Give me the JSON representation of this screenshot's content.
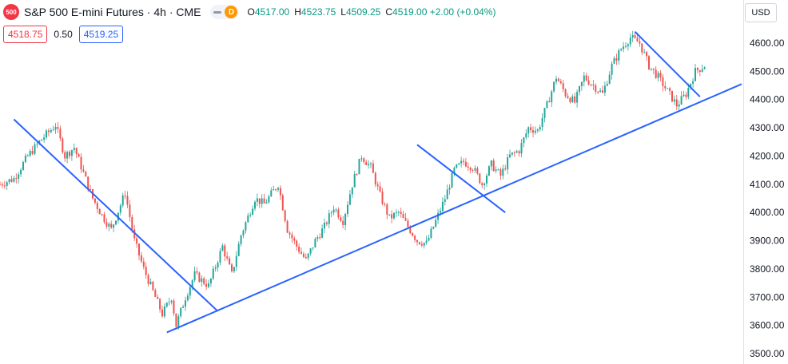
{
  "header": {
    "symbol_badge": "500",
    "title": "S&P 500 E-mini Futures · 4h · CME",
    "d_badge": "D",
    "ohlc": [
      {
        "key": "O",
        "value": "4517.00"
      },
      {
        "key": "H",
        "value": "4523.75"
      },
      {
        "key": "L",
        "value": "4509.25"
      },
      {
        "key": "C",
        "value": "4519.00 +2.00 (+0.04%)"
      }
    ],
    "bid": "4518.75",
    "spread": "0.50",
    "ask": "4519.25",
    "currency": "USD"
  },
  "colors": {
    "up": "#26a69a",
    "down": "#ef5350",
    "trendline": "#2962ff",
    "badge": "#f23645",
    "d_badge": "#ff9800",
    "bid": "#f23645",
    "ask": "#2962ff",
    "ohlc_value": "#089981"
  },
  "chart_data": {
    "type": "candlestick",
    "y_axis": {
      "range": [
        3480,
        4650
      ],
      "ticks": [
        "3500.00",
        "3600.00",
        "3700.00",
        "3800.00",
        "3900.00",
        "4000.00",
        "4100.00",
        "4200.00",
        "4300.00",
        "4400.00",
        "4500.00",
        "4600.00"
      ]
    },
    "price_path": [
      [
        0,
        4100
      ],
      [
        3,
        4120
      ],
      [
        6,
        4200
      ],
      [
        9,
        4260
      ],
      [
        12,
        4310
      ],
      [
        14,
        4200
      ],
      [
        16,
        4230
      ],
      [
        18,
        4140
      ],
      [
        20,
        4050
      ],
      [
        22,
        3990
      ],
      [
        24,
        3940
      ],
      [
        27,
        4070
      ],
      [
        29,
        3900
      ],
      [
        31,
        3800
      ],
      [
        33,
        3720
      ],
      [
        35,
        3640
      ],
      [
        37,
        3700
      ],
      [
        38,
        3600
      ],
      [
        40,
        3700
      ],
      [
        42,
        3780
      ],
      [
        45,
        3740
      ],
      [
        48,
        3880
      ],
      [
        50,
        3780
      ],
      [
        52,
        3920
      ],
      [
        55,
        4050
      ],
      [
        57,
        4030
      ],
      [
        60,
        4100
      ],
      [
        62,
        3940
      ],
      [
        64,
        3880
      ],
      [
        66,
        3830
      ],
      [
        68,
        3900
      ],
      [
        70,
        3950
      ],
      [
        72,
        4020
      ],
      [
        74,
        3970
      ],
      [
        76,
        4100
      ],
      [
        78,
        4200
      ],
      [
        80,
        4160
      ],
      [
        82,
        4060
      ],
      [
        84,
        3980
      ],
      [
        86,
        4000
      ],
      [
        88,
        3950
      ],
      [
        90,
        3900
      ],
      [
        92,
        3890
      ],
      [
        94,
        3970
      ],
      [
        96,
        4050
      ],
      [
        98,
        4150
      ],
      [
        100,
        4180
      ],
      [
        102,
        4160
      ],
      [
        104,
        4100
      ],
      [
        106,
        4170
      ],
      [
        108,
        4130
      ],
      [
        110,
        4200
      ],
      [
        112,
        4220
      ],
      [
        114,
        4300
      ],
      [
        116,
        4290
      ],
      [
        118,
        4380
      ],
      [
        120,
        4480
      ],
      [
        122,
        4420
      ],
      [
        124,
        4390
      ],
      [
        126,
        4480
      ],
      [
        128,
        4450
      ],
      [
        130,
        4420
      ],
      [
        132,
        4520
      ],
      [
        134,
        4580
      ],
      [
        136,
        4620
      ],
      [
        138,
        4600
      ],
      [
        140,
        4520
      ],
      [
        142,
        4480
      ],
      [
        144,
        4430
      ],
      [
        146,
        4380
      ],
      [
        148,
        4420
      ],
      [
        150,
        4500
      ],
      [
        152,
        4520
      ]
    ],
    "trendlines": [
      {
        "from": [
          3,
          4330
        ],
        "to": [
          47,
          3650
        ]
      },
      {
        "from": [
          36,
          3575
        ],
        "to": [
          160,
          4455
        ]
      },
      {
        "from": [
          90,
          4240
        ],
        "to": [
          109,
          4000
        ]
      },
      {
        "from": [
          137,
          4640
        ],
        "to": [
          151,
          4410
        ]
      }
    ]
  }
}
